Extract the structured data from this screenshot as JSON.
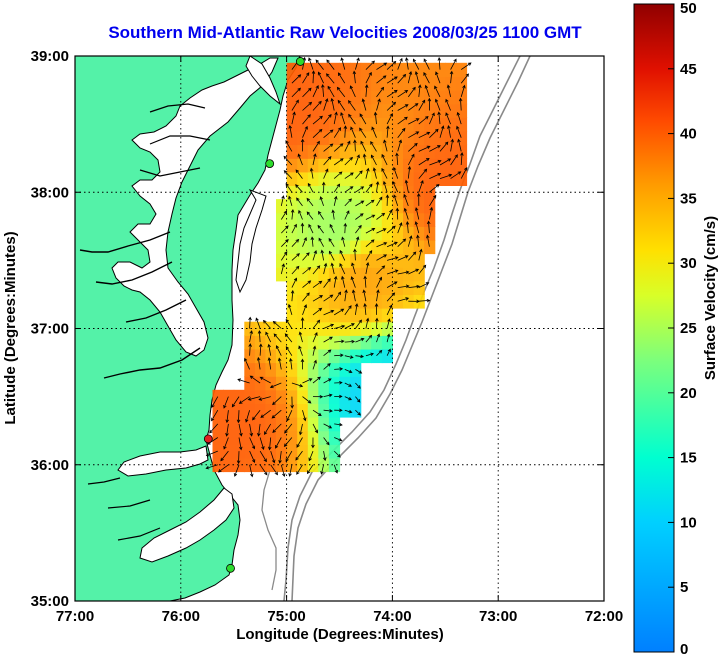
{
  "title": "Southern Mid-Atlantic Raw Velocities 2008/03/25 1100 GMT",
  "x_axis": {
    "label": "Longitude (Degrees:Minutes)",
    "ticks": [
      {
        "value": -77,
        "label": "77:00"
      },
      {
        "value": -76,
        "label": "76:00"
      },
      {
        "value": -75,
        "label": "75:00"
      },
      {
        "value": -74,
        "label": "74:00"
      },
      {
        "value": -73,
        "label": "73:00"
      },
      {
        "value": -72,
        "label": "72:00"
      }
    ],
    "range": [
      -77,
      -72
    ]
  },
  "y_axis": {
    "label": "Latitude (Degrees:Minutes)",
    "ticks": [
      {
        "value": 35,
        "label": "35:00"
      },
      {
        "value": 36,
        "label": "36:00"
      },
      {
        "value": 37,
        "label": "37:00"
      },
      {
        "value": 38,
        "label": "38:00"
      },
      {
        "value": 39,
        "label": "39:00"
      }
    ],
    "range": [
      35,
      39
    ]
  },
  "colorbar": {
    "label": "Surface Velocity (cm/s)",
    "range": [
      0,
      50
    ],
    "ticks": [
      "0",
      "5",
      "10",
      "15",
      "20",
      "25",
      "30",
      "35",
      "40",
      "45",
      "50"
    ]
  },
  "colors": {
    "land": "#54f2a8",
    "water": "#ffffff",
    "coastline": "#000000",
    "title": "#0000ee",
    "bathymetry": "#8a8a8a",
    "site_green": "#2ddc2d",
    "site_red": "#e02020"
  },
  "sites": [
    {
      "color": "green",
      "lon": -74.87,
      "lat": 38.96
    },
    {
      "color": "green",
      "lon": -75.16,
      "lat": 38.21
    },
    {
      "color": "red",
      "lon": -75.74,
      "lat": 36.19
    },
    {
      "color": "green",
      "lon": -75.53,
      "lat": 35.24
    }
  ],
  "chart_data": {
    "type": "heatmap",
    "title": "Southern Mid-Atlantic Raw Velocities 2008/03/25 1100 GMT",
    "xlabel": "Longitude (Degrees:Minutes)",
    "ylabel": "Latitude (Degrees:Minutes)",
    "xlim": [
      -77,
      -72
    ],
    "ylim": [
      35,
      39
    ],
    "value_label": "Surface Velocity (cm/s)",
    "value_range": [
      0,
      50
    ],
    "grid": true,
    "field_note": "surface current velocity field with vectors",
    "regions": [
      {
        "area": "north near 38.6N 75.0W",
        "speed": 40
      },
      {
        "area": "north-east 38.0N 73.5W",
        "speed": 40
      },
      {
        "area": "central 37.4N 74.3W",
        "speed": 36
      },
      {
        "area": "south-west 36.3N 75.5W",
        "speed": 40
      },
      {
        "area": "south-east 36.5N 74.0W",
        "speed": 10
      },
      {
        "area": "mid shelf 37.7N 74.5W",
        "speed": 24
      }
    ]
  }
}
